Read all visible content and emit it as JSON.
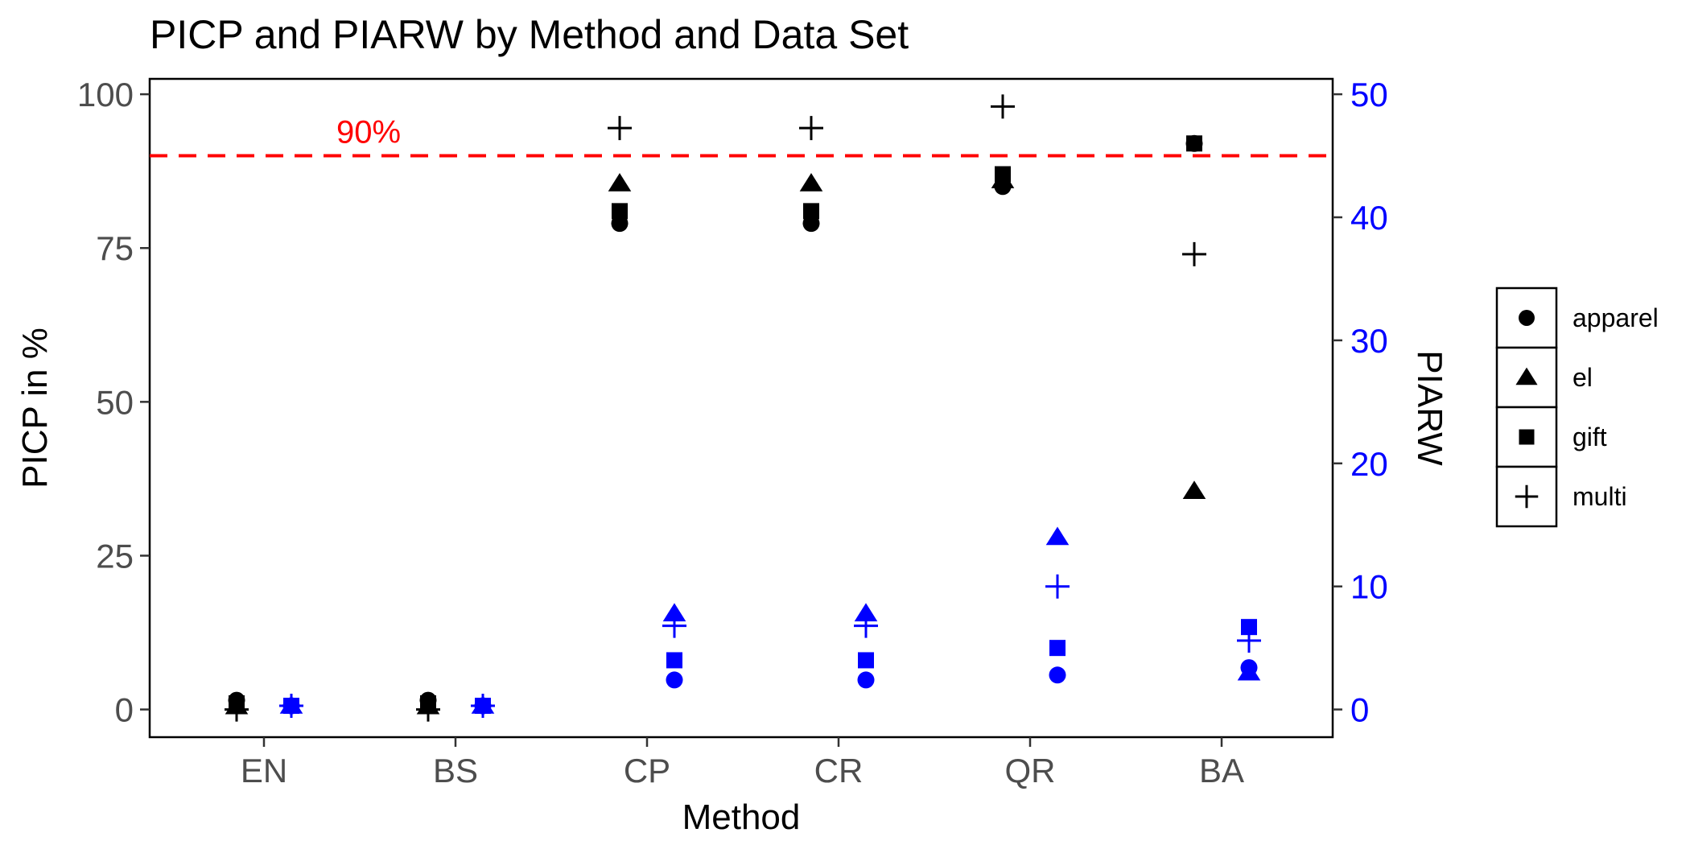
{
  "chart_data": {
    "type": "scatter",
    "title": "PICP and PIARW by Method and Data Set",
    "xlabel": "Method",
    "ylabel": "PICP in %",
    "ylabel_right": "PIARW",
    "categories": [
      "EN",
      "BS",
      "CP",
      "CR",
      "QR",
      "BA"
    ],
    "ylim": [
      -4.5,
      102.5
    ],
    "yticks": [
      0,
      25,
      50,
      75,
      100
    ],
    "ylim_right": [
      -2.25,
      51.25
    ],
    "yticks_right": [
      0,
      10,
      20,
      30,
      40,
      50
    ],
    "grid": false,
    "legend_position": "right",
    "reference_line": {
      "value": 90,
      "label": "90%",
      "color": "#ff0000",
      "style": "dashed"
    },
    "series": [
      {
        "name": "apparel",
        "shape": "circle",
        "picp": [
          1.5,
          1.5,
          79,
          79,
          85,
          92
        ],
        "piarw": [
          0.3,
          0.3,
          2.4,
          2.4,
          2.8,
          3.4
        ]
      },
      {
        "name": "el",
        "shape": "triangle",
        "picp": [
          0.5,
          0.5,
          85.5,
          85.5,
          86,
          35.5
        ],
        "piarw": [
          0.3,
          0.3,
          7.8,
          7.8,
          14,
          3
        ]
      },
      {
        "name": "gift",
        "shape": "square",
        "picp": [
          1,
          1,
          81,
          81,
          87,
          92
        ],
        "piarw": [
          0.3,
          0.3,
          4,
          4,
          5,
          6.7
        ]
      },
      {
        "name": "multi",
        "shape": "plus",
        "picp": [
          0,
          0,
          94.5,
          94.5,
          98,
          74
        ],
        "piarw": [
          0.3,
          0.3,
          6.8,
          6.8,
          10,
          5.6
        ]
      }
    ],
    "colors": {
      "picp": "#000000",
      "piarw": "#0000ff",
      "right_axis": "#0000ff",
      "reference": "#ff0000"
    }
  }
}
